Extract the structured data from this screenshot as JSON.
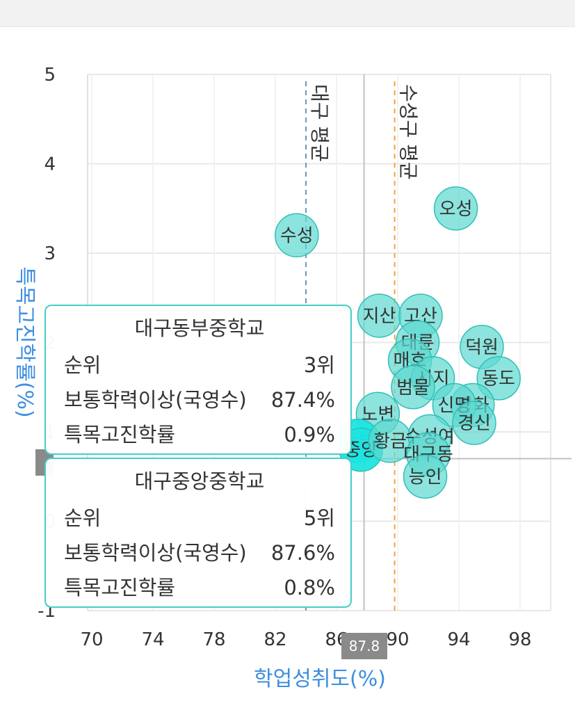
{
  "chart_data": {
    "type": "scatter",
    "xlabel": "학업성취도(%)",
    "ylabel": "특목고진학률(%)",
    "xlim": [
      68,
      100
    ],
    "ylim": [
      -1,
      5
    ],
    "xticks": [
      "70",
      "74",
      "78",
      "82",
      "86",
      "90",
      "94",
      "98"
    ],
    "yticks": [
      "5",
      "4",
      "3",
      "2",
      "1",
      "0",
      "-1"
    ],
    "reference_lines": [
      {
        "label": "대구 평균",
        "x": 84.0,
        "color": "#6f95b8"
      },
      {
        "label": "수성구 평균",
        "x": 89.8,
        "color": "#f3a33a"
      }
    ],
    "cursor": {
      "x_label": "87.8",
      "x": 87.8,
      "y": 0.7
    },
    "points": [
      {
        "label": "오성",
        "x": 93.8,
        "y": 3.5
      },
      {
        "label": "수성",
        "x": 83.4,
        "y": 3.2
      },
      {
        "label": "지산",
        "x": 88.8,
        "y": 2.3
      },
      {
        "label": "고산",
        "x": 91.5,
        "y": 2.3
      },
      {
        "label": "대륜",
        "x": 91.3,
        "y": 2.0
      },
      {
        "label": "덕원",
        "x": 95.5,
        "y": 1.95
      },
      {
        "label": "매호",
        "x": 90.8,
        "y": 1.8
      },
      {
        "label": "동도",
        "x": 96.6,
        "y": 1.6
      },
      {
        "label": "시지",
        "x": 92.3,
        "y": 1.6
      },
      {
        "label": "범물",
        "x": 91.0,
        "y": 1.5
      },
      {
        "label": "평화",
        "x": 94.9,
        "y": 1.3
      },
      {
        "label": "신명",
        "x": 93.7,
        "y": 1.3
      },
      {
        "label": "경신",
        "x": 95.0,
        "y": 1.1
      },
      {
        "label": "노변",
        "x": 88.7,
        "y": 1.2
      },
      {
        "label": "동부",
        "x": 87.4,
        "y": 0.9
      },
      {
        "label": "중앙",
        "x": 87.6,
        "y": 0.8
      },
      {
        "label": "황금",
        "x": 89.5,
        "y": 0.9
      },
      {
        "label": "수성여",
        "x": 92.1,
        "y": 0.95
      },
      {
        "label": "대구동",
        "x": 92.0,
        "y": 0.75
      },
      {
        "label": "능인",
        "x": 91.8,
        "y": 0.5
      }
    ],
    "colors": {
      "bubble": "#5dd8d0",
      "bubble_edge": "#2fbfb6",
      "highlight": "#1ee5e0",
      "axis_title": "#3d8ee0",
      "tooltip_border": "#43cfc7"
    }
  },
  "tooltips": [
    {
      "title": "대구동부중학교",
      "rank_label": "순위",
      "rank": "3위",
      "achievement_label": "보통학력이상(국영수)",
      "achievement": "87.4%",
      "rate_label": "특목고진학률",
      "rate": "0.9%"
    },
    {
      "title": "대구중앙중학교",
      "rank_label": "순위",
      "rank": "5위",
      "achievement_label": "보통학력이상(국영수)",
      "achievement": "87.6%",
      "rate_label": "특목고진학률",
      "rate": "0.8%"
    }
  ]
}
